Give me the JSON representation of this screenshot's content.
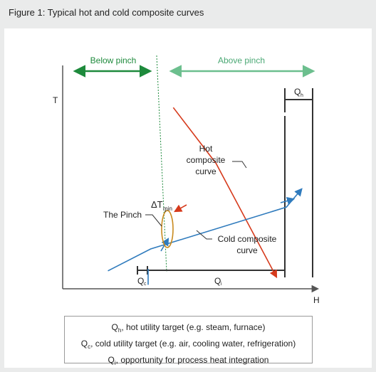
{
  "figure_title": "Figure 1: Typical hot and cold composite curves",
  "chart_data": {
    "type": "line",
    "xlabel": "H",
    "ylabel": "T",
    "grid": false,
    "series": [
      {
        "name": "Hot composite curve",
        "color": "#d63a1c",
        "points": [
          [
            0.44,
            0.91
          ],
          [
            0.61,
            0.63
          ],
          [
            0.85,
            0.06
          ]
        ]
      },
      {
        "name": "Cold composite curve",
        "color": "#2f7bbd",
        "points": [
          [
            0.18,
            0.09
          ],
          [
            0.35,
            0.2
          ],
          [
            0.89,
            0.41
          ],
          [
            0.95,
            0.5
          ]
        ]
      }
    ],
    "annotations": {
      "below_pinch": "Below pinch",
      "above_pinch": "Above pinch",
      "hot_curve_label": [
        "Hot",
        "composite",
        "curve"
      ],
      "cold_curve_label": [
        "Cold composite",
        "curve"
      ],
      "pinch_label": "The Pinch",
      "delta_t": "ΔT",
      "delta_t_sub": "min",
      "qh": "Q",
      "qh_sub": "h",
      "qc": "Q",
      "qc_sub": "c",
      "qi": "Q",
      "qi_sub": "i"
    },
    "colors": {
      "below_pinch": "#1e8a3c",
      "above_pinch": "#6cbf8e",
      "pinch_line": "#1e8a3c",
      "pinch_ellipse": "#c98a1e",
      "axes": "#555555"
    }
  },
  "legend": [
    {
      "symbol": "Q",
      "sub": "h",
      "text": ", hot utility target (e.g. steam, furnace)"
    },
    {
      "symbol": "Q",
      "sub": "c",
      "text": ", cold utility target (e.g. air, cooling water, refrigeration)"
    },
    {
      "symbol": "Q",
      "sub": "i",
      "text": ", opportunity for process heat integration"
    }
  ]
}
